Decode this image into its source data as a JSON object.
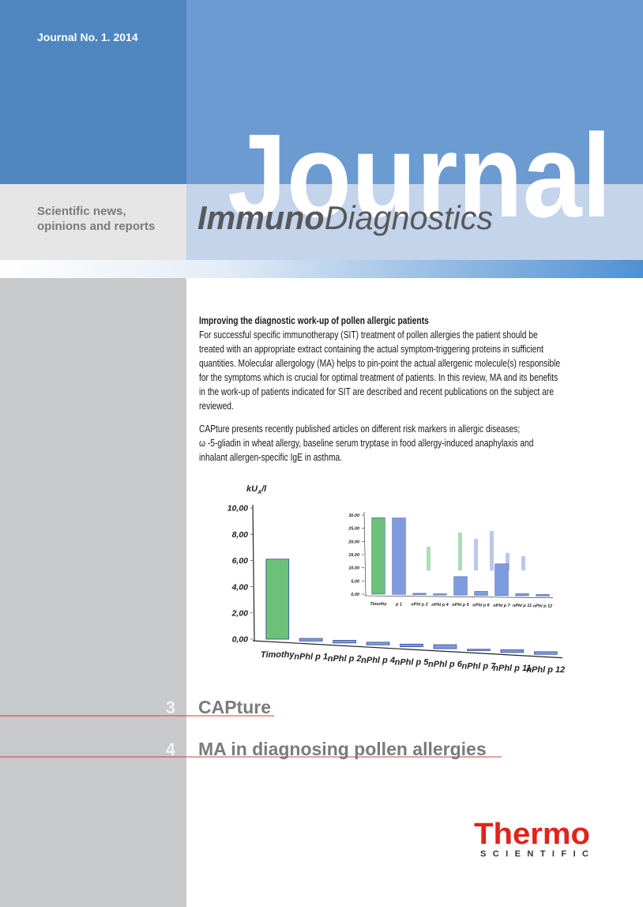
{
  "header": {
    "issue": "Journal No. 1. 2014",
    "tagline": [
      "Scientific news,",
      "opinions and reports"
    ],
    "masthead": "Journal",
    "brand_bold": "Immuno",
    "brand_light": "Diagnostics"
  },
  "article": {
    "heading": "Improving the diagnostic work-up of pollen allergic patients",
    "paragraphs": [
      [
        "For successful specific immunotherapy (SIT) treatment of pollen allergies the patient should be",
        "treated with an appropriate extract containing the actual symptom-triggering proteins in sufficient",
        "quantities. Molecular allergology (MA) helps to pin-point the actual allergenic molecule(s) responsible",
        "for the symptoms which is crucial for optimal treatment of patients.  In this review, MA and its benefits",
        "in the work-up of patients indicated for SIT are described and recent publications on the subject are",
        "reviewed."
      ],
      [
        "CAPture presents recently published articles on different risk markers in allergic diseases;",
        "ω -5-gliadin in wheat allergy, baseline serum tryptase in food allergy-induced anaphylaxis and",
        "inhalant allergen-specific IgE in asthma."
      ]
    ]
  },
  "chart_data": [
    {
      "type": "bar",
      "ylabel": [
        "kU",
        "A",
        "/l"
      ],
      "categories": [
        "Timothy",
        "nPhl p 1",
        "nPhl p 2",
        "nPhl p 4",
        "nPhl p 5",
        "nPhl p 6",
        "nPhl p 7",
        "nPhl p 11",
        "nPhl p 12"
      ],
      "values": [
        6.1,
        0.2,
        0.2,
        0.2,
        0.2,
        0.3,
        0.1,
        0.2,
        0.2
      ],
      "colors": [
        "#6cc07a",
        "#7f9be0",
        "#7f9be0",
        "#7f9be0",
        "#7f9be0",
        "#7f9be0",
        "#7f9be0",
        "#7f9be0",
        "#7f9be0"
      ],
      "ylim": [
        0,
        10
      ],
      "yticks": [
        {
          "value": 0,
          "label": "0,00"
        },
        {
          "value": 2,
          "label": "2,00"
        },
        {
          "value": 4,
          "label": "4,00"
        },
        {
          "value": 6,
          "label": "6,00"
        },
        {
          "value": 8,
          "label": "8,00"
        },
        {
          "value": 10,
          "label": "10,00"
        }
      ]
    },
    {
      "type": "bar",
      "categories": [
        "Timothy",
        "p 1",
        "nPhl p 2",
        "nPhl p 4",
        "nPhl p 5",
        "nPhl p 6",
        "nPhl p 7",
        "nPhl p 11",
        "nPhl p 12"
      ],
      "values": [
        29,
        29,
        0.5,
        0.4,
        7,
        1.5,
        12,
        0.8,
        0.6
      ],
      "colors": [
        "#6cc07a",
        "#7f9be0",
        "#7f9be0",
        "#7f9be0",
        "#7f9be0",
        "#7f9be0",
        "#7f9be0",
        "#7f9be0",
        "#7f9be0"
      ],
      "ylim": [
        0,
        30
      ],
      "yticks": [
        {
          "value": 0,
          "label": "0,00"
        },
        {
          "value": 5,
          "label": "5,00"
        },
        {
          "value": 10,
          "label": "10,00"
        },
        {
          "value": 15,
          "label": "15,00"
        },
        {
          "value": 20,
          "label": "20,00"
        },
        {
          "value": 25,
          "label": "25,00"
        },
        {
          "value": 30,
          "label": "30,00"
        }
      ]
    }
  ],
  "contents": [
    {
      "page": "3",
      "title": "CAPture"
    },
    {
      "page": "4",
      "title": "MA in diagnosing pollen allergies"
    }
  ],
  "logo": {
    "name": "Thermo",
    "sub": "SCIENTIFIC"
  }
}
